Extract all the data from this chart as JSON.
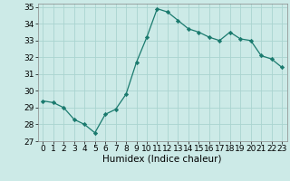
{
  "x": [
    0,
    1,
    2,
    3,
    4,
    5,
    6,
    7,
    8,
    9,
    10,
    11,
    12,
    13,
    14,
    15,
    16,
    17,
    18,
    19,
    20,
    21,
    22,
    23
  ],
  "y": [
    29.4,
    29.3,
    29.0,
    28.3,
    28.0,
    27.5,
    28.6,
    28.9,
    29.8,
    31.7,
    33.2,
    34.9,
    34.7,
    34.2,
    33.7,
    33.5,
    33.2,
    33.0,
    33.5,
    33.1,
    33.0,
    32.1,
    31.9,
    31.4
  ],
  "line_color": "#1a7a6e",
  "marker": "D",
  "marker_size": 2.2,
  "bg_color": "#cceae7",
  "grid_color": "#aad4d0",
  "xlabel": "Humidex (Indice chaleur)",
  "xlim": [
    -0.5,
    23.5
  ],
  "ylim": [
    27,
    35.2
  ],
  "yticks": [
    27,
    28,
    29,
    30,
    31,
    32,
    33,
    34,
    35
  ],
  "xticks": [
    0,
    1,
    2,
    3,
    4,
    5,
    6,
    7,
    8,
    9,
    10,
    11,
    12,
    13,
    14,
    15,
    16,
    17,
    18,
    19,
    20,
    21,
    22,
    23
  ],
  "tick_fontsize": 6.5,
  "xlabel_fontsize": 7.5
}
